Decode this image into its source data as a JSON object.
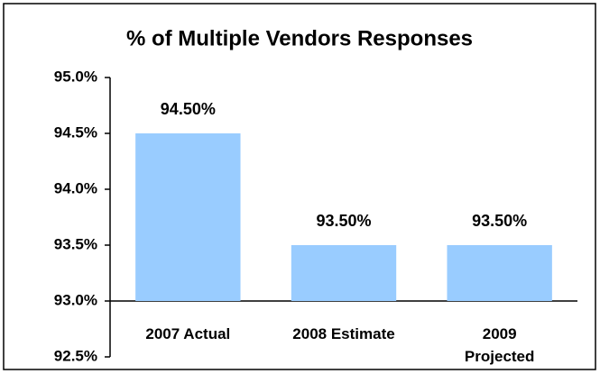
{
  "chart_data": {
    "type": "bar",
    "title": "% of Multiple Vendors Responses",
    "categories": [
      "2007 Actual",
      "2008 Estimate",
      "2009\nProjected"
    ],
    "values": [
      94.5,
      93.5,
      93.5
    ],
    "value_labels": [
      "94.50%",
      "93.50%",
      "93.50%"
    ],
    "color": "#99ccff",
    "ylim": [
      92.5,
      95.0
    ],
    "baseline": 93.0,
    "yticks": [
      {
        "value": 92.5,
        "label": "92.5%"
      },
      {
        "value": 93.0,
        "label": "93.0%"
      },
      {
        "value": 93.5,
        "label": "93.5%"
      },
      {
        "value": 94.0,
        "label": "94.0%"
      },
      {
        "value": 94.5,
        "label": "94.5%"
      },
      {
        "value": 95.0,
        "label": "95.0%"
      }
    ],
    "grid": false
  }
}
